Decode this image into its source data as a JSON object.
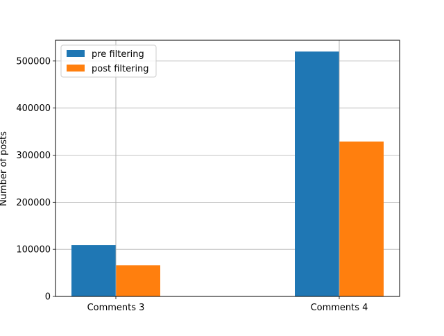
{
  "chart_data": {
    "type": "bar",
    "title": "",
    "xlabel": "",
    "ylabel": "Number of posts",
    "categories": [
      "Comments 3",
      "Comments 4"
    ],
    "series": [
      {
        "name": "pre filtering",
        "color": "#1f77b4",
        "values": [
          109000,
          520000
        ]
      },
      {
        "name": "post filtering",
        "color": "#ff7f0e",
        "values": [
          66000,
          329000
        ]
      }
    ],
    "ylim": [
      0,
      544000
    ],
    "yticks": [
      0,
      100000,
      200000,
      300000,
      400000,
      500000
    ],
    "grid": true,
    "legend_position": "top-left"
  }
}
